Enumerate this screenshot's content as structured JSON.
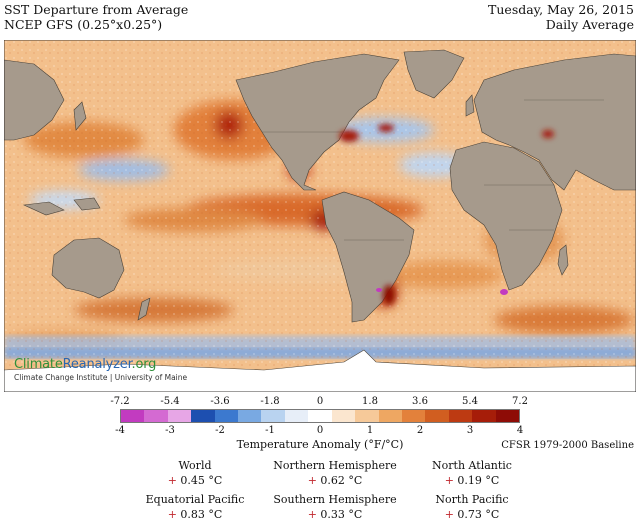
{
  "header": {
    "title": "SST Departure from Average",
    "subtitle": "NCEP GFS (0.25°x0.25°)",
    "date": "Tuesday, May 26, 2015",
    "period": "Daily Average"
  },
  "logo": {
    "name_part1": "Climate",
    "name_part2": "Reanalyzer",
    "name_part3": ".org",
    "tagline": "Climate Change Institute | University of Maine"
  },
  "colorbar": {
    "title": "Temperature Anomaly (°F/°C)",
    "fahrenheit_ticks": [
      "-7.2",
      "-5.4",
      "-3.6",
      "-1.8",
      "0",
      "1.8",
      "3.6",
      "5.4",
      "7.2"
    ],
    "celsius_ticks": [
      "-4",
      "-3",
      "-2",
      "-1",
      "0",
      "1",
      "2",
      "3",
      "4"
    ],
    "colors": [
      "#c23bc0",
      "#d46ad2",
      "#e7a6e6",
      "#1d4fb0",
      "#3c79cf",
      "#79a9e2",
      "#b9d3f0",
      "#e7eef8",
      "#ffffff",
      "#fbe6cf",
      "#f6c999",
      "#eea762",
      "#e3813b",
      "#d15e20",
      "#bd3a12",
      "#a61d09",
      "#8e0c06"
    ]
  },
  "baseline": "CFSR 1979-2000 Baseline",
  "stats": [
    {
      "label": "World",
      "sign": "+",
      "value": "0.45 °C"
    },
    {
      "label": "Northern Hemisphere",
      "sign": "+",
      "value": "0.62 °C"
    },
    {
      "label": "North Atlantic",
      "sign": "+",
      "value": "0.19 °C"
    },
    {
      "label": "Equatorial Pacific",
      "sign": "+",
      "value": "0.83 °C"
    },
    {
      "label": "Southern Hemisphere",
      "sign": "+",
      "value": "0.33 °C"
    },
    {
      "label": "North Pacific",
      "sign": "+",
      "value": "0.73 °C"
    }
  ]
}
